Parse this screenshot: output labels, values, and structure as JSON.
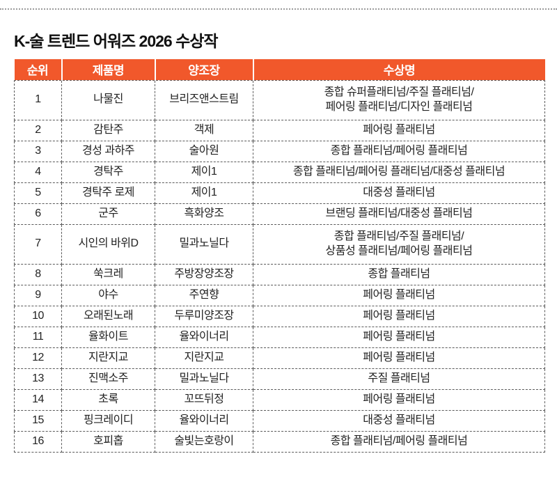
{
  "title": "K-술 트렌드 어워즈 2026 수상작",
  "colors": {
    "header_bg": "#F1582B",
    "header_text": "#FFFFFF",
    "body_text": "#222222",
    "border": "#5A5A5A"
  },
  "chart_data": {
    "type": "table",
    "title": "K-술 트렌드 어워즈 2026 수상작",
    "columns": [
      "순위",
      "제품명",
      "양조장",
      "수상명"
    ],
    "rows": [
      [
        "1",
        "나물진",
        "브리즈앤스트림",
        [
          "종합 슈퍼플래티넘/주질 플래티넘/",
          "페어링 플래티넘/디자인 플래티넘"
        ]
      ],
      [
        "2",
        "감탄주",
        "객제",
        "페어링 플래티넘"
      ],
      [
        "3",
        "경성 과하주",
        "술아원",
        "종합 플래티넘/페어링 플래티넘"
      ],
      [
        "4",
        "경탁주",
        "제이1",
        "종합 플래티넘/페어링 플래티넘/대중성 플래티넘"
      ],
      [
        "5",
        "경탁주 로제",
        "제이1",
        "대중성 플래티넘"
      ],
      [
        "6",
        "군주",
        "흑화양조",
        "브랜딩 플래티넘/대중성 플래티넘"
      ],
      [
        "7",
        "시인의 바위D",
        "밀과노닐다",
        [
          "종합 플래티넘/주질 플래티넘/",
          "상품성 플래티넘/페어링 플래티넘"
        ]
      ],
      [
        "8",
        "쑥크레",
        "주방장양조장",
        "종합 플래티넘"
      ],
      [
        "9",
        "야수",
        "주연향",
        "페어링 플래티넘"
      ],
      [
        "10",
        "오래된노래",
        "두루미양조장",
        "페어링 플래티넘"
      ],
      [
        "11",
        "율화이트",
        "율와이너리",
        "페어링 플래티넘"
      ],
      [
        "12",
        "지란지교",
        "지란지교",
        "페어링 플래티넘"
      ],
      [
        "13",
        "진맥소주",
        "밀과노닐다",
        "주질 플래티넘"
      ],
      [
        "14",
        "초록",
        "꼬뜨뒤정",
        "페어링 플래티넘"
      ],
      [
        "15",
        "핑크레이디",
        "율와이너리",
        "대중성 플래티넘"
      ],
      [
        "16",
        "호피홉",
        "술빛는호랑이",
        "종합 플래티넘/페어링 플래티넘"
      ]
    ]
  }
}
